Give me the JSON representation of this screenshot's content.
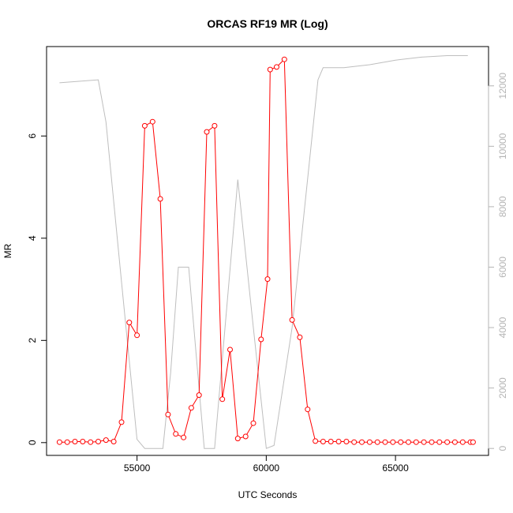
{
  "chart_data": {
    "type": "line",
    "title": "ORCAS RF19 MR (Log)",
    "xlabel": "UTC Seconds",
    "ylabel": "MR",
    "xlim": [
      51500,
      68600
    ],
    "ylim": [
      -0.25,
      7.75
    ],
    "y2lim": [
      -230,
      13300
    ],
    "x_ticks": [
      55000,
      60000,
      65000
    ],
    "x_tick_labels": [
      "55000",
      "60000",
      "65000"
    ],
    "y_ticks": [
      0,
      2,
      4,
      6
    ],
    "y_tick_labels": [
      "0",
      "2",
      "4",
      "6"
    ],
    "y2_ticks": [
      0,
      2000,
      4000,
      6000,
      8000,
      10000,
      12000
    ],
    "y2_tick_labels": [
      "0",
      "2000",
      "4000",
      "6000",
      "8000",
      "10000",
      "12000"
    ],
    "grid": false,
    "series": [
      {
        "axis": "left",
        "color": "#ff0000",
        "marker": "open-circle",
        "x": [
          52000,
          52300,
          52600,
          52900,
          53200,
          53500,
          53800,
          54100,
          54400,
          54700,
          55000,
          55300,
          55600,
          55900,
          56200,
          56500,
          56800,
          57100,
          57400,
          57700,
          58000,
          58300,
          58600,
          58900,
          59200,
          59500,
          59800,
          60050,
          60150,
          60400,
          60700,
          61000,
          61300,
          61600,
          61900,
          62200,
          62500,
          62800,
          63100,
          63400,
          63700,
          64000,
          64300,
          64600,
          64900,
          65200,
          65500,
          65800,
          66100,
          66400,
          66700,
          67000,
          67300,
          67600,
          67900,
          68000
        ],
        "values": [
          0.01,
          0.01,
          0.02,
          0.02,
          0.01,
          0.02,
          0.05,
          0.02,
          0.4,
          2.35,
          2.1,
          6.2,
          6.28,
          4.77,
          0.55,
          0.17,
          0.1,
          0.68,
          0.93,
          6.08,
          6.2,
          0.85,
          1.82,
          0.08,
          0.12,
          0.38,
          2.02,
          3.2,
          7.3,
          7.35,
          7.5,
          2.4,
          2.06,
          0.65,
          0.03,
          0.02,
          0.02,
          0.02,
          0.02,
          0.01,
          0.01,
          0.01,
          0.01,
          0.01,
          0.01,
          0.01,
          0.01,
          0.01,
          0.01,
          0.01,
          0.01,
          0.01,
          0.01,
          0.01,
          0.01,
          0.01
        ]
      },
      {
        "axis": "right",
        "color": "#bebebe",
        "marker": "none",
        "x": [
          52000,
          53500,
          53800,
          54400,
          55000,
          55300,
          56000,
          56300,
          56600,
          57000,
          57300,
          57600,
          58000,
          58900,
          59500,
          60000,
          60300,
          61000,
          62000,
          62200,
          63000,
          64000,
          65000,
          66000,
          67000,
          67800
        ],
        "values": [
          12100,
          12200,
          10800,
          5500,
          300,
          0,
          0,
          2500,
          6000,
          6000,
          3000,
          0,
          0,
          8900,
          4000,
          0,
          100,
          4000,
          12200,
          12600,
          12600,
          12700,
          12850,
          12950,
          13000,
          13000
        ]
      }
    ]
  }
}
